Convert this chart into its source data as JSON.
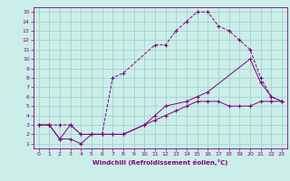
{
  "xlabel": "Windchill (Refroidissement éolien,°C)",
  "bg_color": "#cceee8",
  "line_color": "#800080",
  "grid_color": "#99cccc",
  "xlim": [
    -0.5,
    23.5
  ],
  "ylim": [
    0.5,
    15.5
  ],
  "xticks": [
    0,
    1,
    2,
    3,
    4,
    5,
    6,
    7,
    8,
    9,
    10,
    11,
    12,
    13,
    14,
    15,
    16,
    17,
    18,
    19,
    20,
    21,
    22,
    23
  ],
  "yticks": [
    1,
    2,
    3,
    4,
    5,
    6,
    7,
    8,
    9,
    10,
    11,
    12,
    13,
    14,
    15
  ],
  "line1_x": [
    1,
    2,
    3,
    4,
    5,
    6,
    7,
    8,
    11,
    12,
    13,
    14,
    15,
    16,
    17,
    18,
    19,
    20,
    21,
    22,
    23
  ],
  "line1_y": [
    3,
    3,
    3,
    2,
    2,
    2,
    8,
    8.5,
    11.5,
    11.5,
    13,
    14,
    15,
    15,
    13.5,
    13,
    12,
    11,
    8,
    6,
    5.5
  ],
  "line2_x": [
    0,
    1,
    2,
    3,
    4,
    5,
    6,
    7,
    8,
    10,
    11,
    12,
    13,
    14,
    15,
    16,
    17,
    18,
    19,
    20,
    21,
    22,
    23
  ],
  "line2_y": [
    3,
    3,
    1.5,
    1.5,
    1,
    2,
    2,
    2,
    2,
    3,
    3.5,
    4,
    4.5,
    5,
    5.5,
    5.5,
    5.5,
    5,
    5,
    5,
    5.5,
    5.5,
    5.5
  ],
  "line3_x": [
    0,
    1,
    2,
    3,
    4,
    5,
    6,
    7,
    8,
    10,
    11,
    12,
    14,
    15,
    16,
    20,
    21,
    22,
    23
  ],
  "line3_y": [
    3,
    3,
    1.5,
    3,
    2,
    2,
    2,
    2,
    2,
    3,
    4,
    5,
    5.5,
    6,
    6.5,
    10,
    7.5,
    6,
    5.5
  ]
}
